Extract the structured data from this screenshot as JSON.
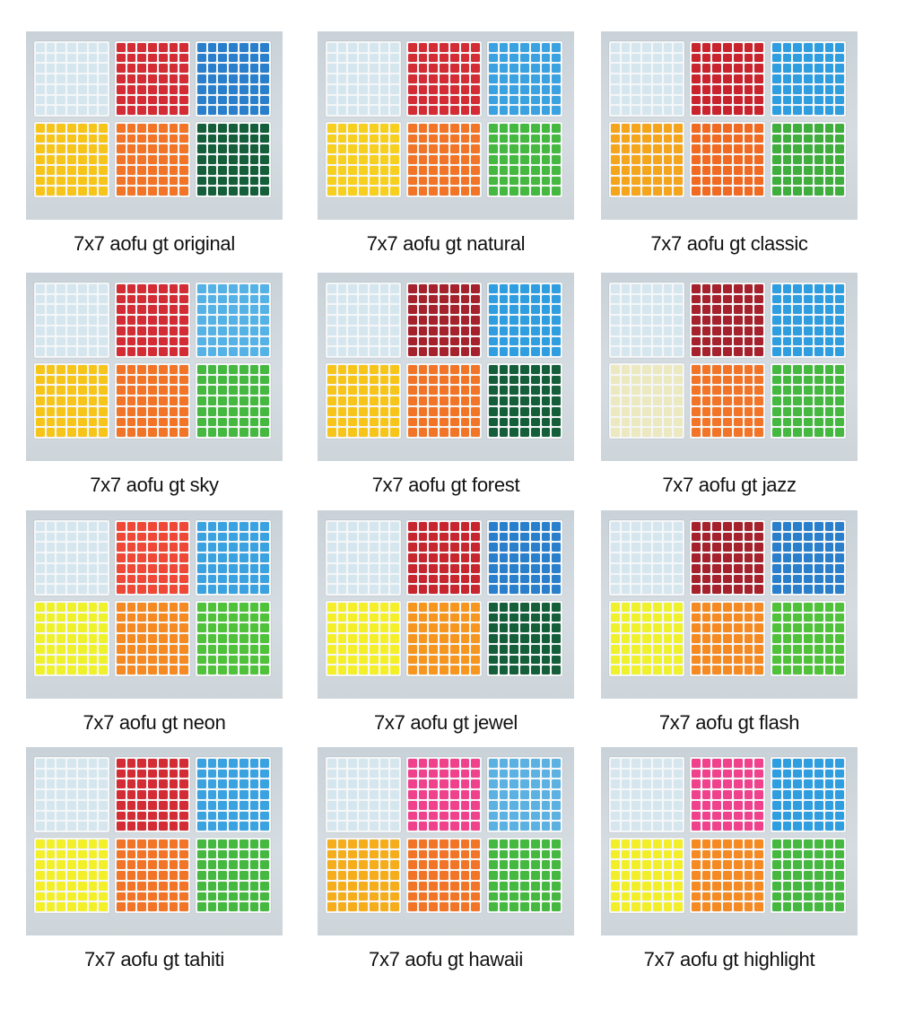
{
  "variants": [
    {
      "caption": "7x7 aofu gt original",
      "colors": [
        "#d5e6ee",
        "#d42c35",
        "#2a7fcc",
        "#f7c51a",
        "#f27427",
        "#155e3a"
      ]
    },
    {
      "caption": "7x7 aofu gt natural",
      "colors": [
        "#d5e6ee",
        "#d42c35",
        "#3aa2e0",
        "#f7cf1e",
        "#f27427",
        "#45b83f"
      ]
    },
    {
      "caption": "7x7 aofu gt classic",
      "colors": [
        "#d5e6ee",
        "#c9242e",
        "#2f9ee0",
        "#f4a51c",
        "#f06a22",
        "#3fae3d"
      ]
    },
    {
      "caption": "7x7 aofu gt sky",
      "colors": [
        "#d5e6ee",
        "#d42c35",
        "#54b2e6",
        "#f7c51a",
        "#f27427",
        "#45b83f"
      ]
    },
    {
      "caption": "7x7 aofu gt forest",
      "colors": [
        "#d5e6ee",
        "#a5222c",
        "#2f9ee0",
        "#f7c51a",
        "#f27427",
        "#155e3a"
      ]
    },
    {
      "caption": "7x7 aofu gt jazz",
      "colors": [
        "#d5e6ee",
        "#a5222c",
        "#2f9ee0",
        "#ece8bf",
        "#f27427",
        "#45b83f"
      ]
    },
    {
      "caption": "7x7 aofu gt neon",
      "colors": [
        "#d5e6ee",
        "#ef4836",
        "#3aa2e0",
        "#eff22a",
        "#f58a22",
        "#4fc23a"
      ]
    },
    {
      "caption": "7x7 aofu gt jewel",
      "colors": [
        "#d5e6ee",
        "#c7262f",
        "#2a7fcc",
        "#f5ef2a",
        "#f6961f",
        "#155e3a"
      ]
    },
    {
      "caption": "7x7 aofu gt flash",
      "colors": [
        "#d5e6ee",
        "#a5222c",
        "#2a7fcc",
        "#eef12b",
        "#f58a22",
        "#4fc23a"
      ]
    },
    {
      "caption": "7x7 aofu gt tahiti",
      "colors": [
        "#d5e6ee",
        "#d42c35",
        "#3aa2e0",
        "#f3f02a",
        "#f27427",
        "#45b83f"
      ]
    },
    {
      "caption": "7x7 aofu gt hawaii",
      "colors": [
        "#d5e6ee",
        "#f0418d",
        "#5bb2e2",
        "#f5ad1c",
        "#f27427",
        "#45b83f"
      ]
    },
    {
      "caption": "7x7 aofu gt highlight",
      "colors": [
        "#d5e6ee",
        "#f0418d",
        "#2f9ee0",
        "#f2ef2a",
        "#f58a22",
        "#45b83f"
      ]
    }
  ]
}
